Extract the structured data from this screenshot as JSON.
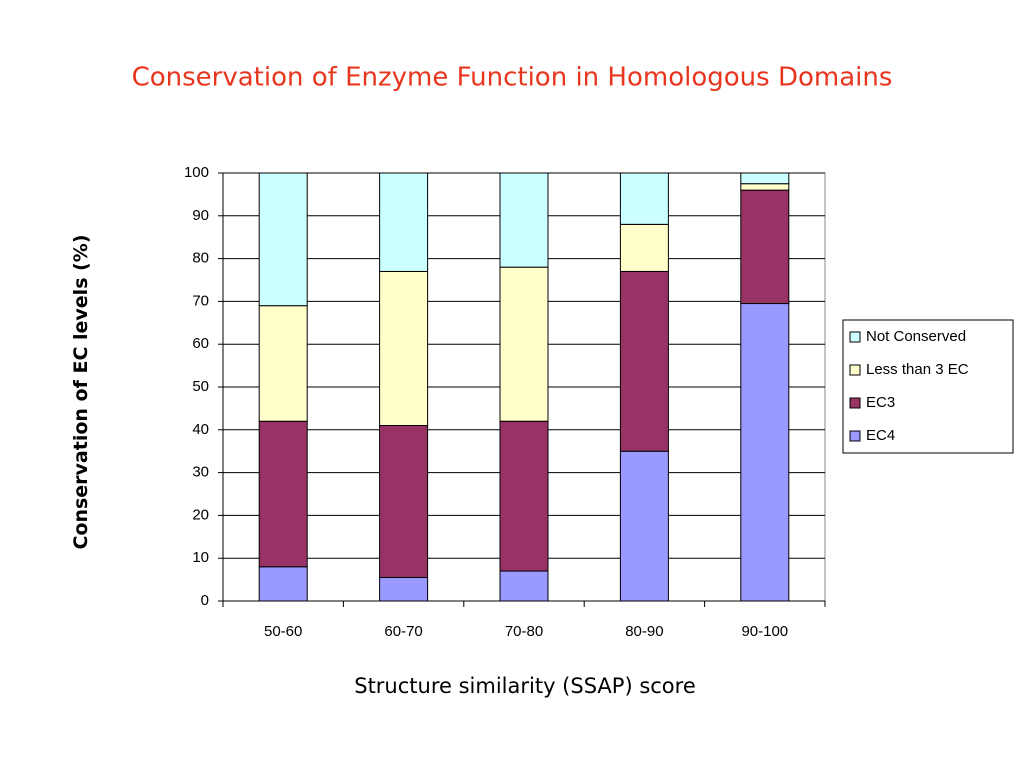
{
  "chart_data": {
    "type": "stacked_bar",
    "title": "Conservation of Enzyme Function in Homologous Domains",
    "x_label": "Structure similarity (SSAP) score",
    "y_label": "Conservation of EC levels (%)",
    "categories": [
      "50-60",
      "60-70",
      "70-80",
      "80-90",
      "90-100"
    ],
    "series": [
      {
        "name": "EC4",
        "color": "#9999ff",
        "values": [
          8,
          5.5,
          7,
          35,
          69.5
        ]
      },
      {
        "name": "EC3",
        "color": "#993366",
        "values": [
          34,
          35.5,
          35,
          42,
          26.5
        ]
      },
      {
        "name": "Less than 3 EC",
        "color": "#ffffcc",
        "values": [
          27,
          36,
          36,
          11,
          1.5
        ]
      },
      {
        "name": "Not Conserved",
        "color": "#ccffff",
        "values": [
          31,
          23,
          22,
          12,
          2.5
        ]
      }
    ],
    "ylim": [
      0,
      100
    ],
    "yticks": [
      0,
      10,
      20,
      30,
      40,
      50,
      60,
      70,
      80,
      90,
      100
    ],
    "grid": true,
    "legend": "right"
  }
}
